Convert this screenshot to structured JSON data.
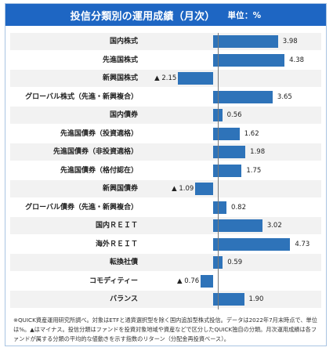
{
  "header": {
    "title": "投信分類別の運用成績（月次）",
    "unit": "単位：%"
  },
  "chart_data": {
    "type": "bar",
    "orientation": "horizontal",
    "categories": [
      "国内株式",
      "先進国株式",
      "新興国株式",
      "グローバル株式（先進・新興複合）",
      "国内債券",
      "先進国債券（投資適格）",
      "先進国債券（非投資適格）",
      "先進国債券（格付認在）",
      "新興国債券",
      "グローバル債券（先進・新興複合）",
      "国内ＲＥＩＴ",
      "海外ＲＥＩＴ",
      "転換社債",
      "コモディティー",
      "バランス"
    ],
    "values": [
      3.98,
      4.38,
      -2.15,
      3.65,
      0.56,
      1.62,
      1.98,
      1.75,
      -1.09,
      0.82,
      3.02,
      4.73,
      0.59,
      -0.76,
      1.9
    ],
    "value_labels": [
      "3.98",
      "4.38",
      "▲ 2.15",
      "3.65",
      "0.56",
      "1.62",
      "1.98",
      "1.75",
      "▲ 1.09",
      "0.82",
      "3.02",
      "4.73",
      "0.59",
      "▲ 0.76",
      "1.90"
    ],
    "bar_color": "#2e73b9",
    "title": "投信分類別の運用成績（月次）",
    "xlabel": "",
    "ylabel": "",
    "xlim": [
      -2.3,
      5.2
    ],
    "grid": false
  },
  "footnote": "※QUICK資産運用研究所調べ。対象はETFと通貨選択型を除く国内追加型株式投信。データは2022年7月末時点で、単位は%。▲はマイナス。投信分類はファンドを投資対象地域や資産などで区分したQUICK独自の分類。月次運用成績は各ファンドが属する分類の平均的な値動きを示す指数のリターン（分配金再投資ベース）。"
}
